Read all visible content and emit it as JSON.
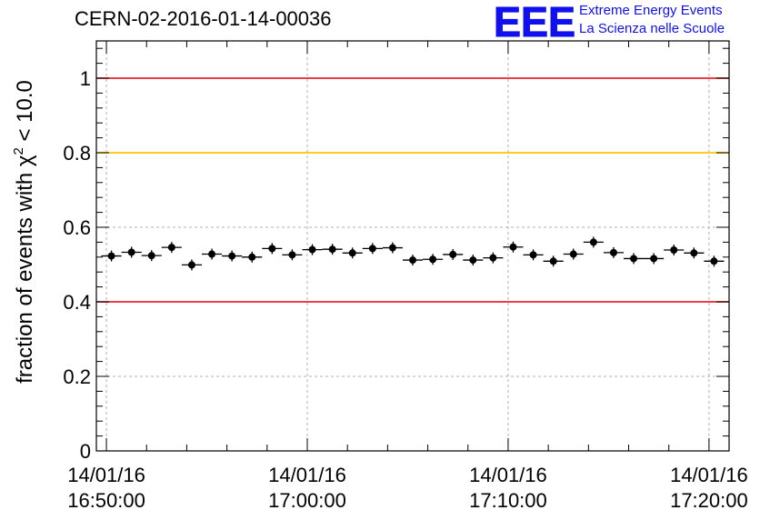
{
  "header": {
    "title": "CERN-02-2016-01-14-00036",
    "logo_text": "EEE",
    "logo_line1": "Extreme Energy Events",
    "logo_line2": "La Scienza nelle Scuole"
  },
  "colors": {
    "points": "#000000",
    "red_line": "#e8232b",
    "yellow_line": "#ffc400",
    "grid": "#b0b0b0",
    "logo": "#1010ee"
  },
  "chart_data": {
    "type": "scatter",
    "title": "CERN-02-2016-01-14-00036",
    "xlabel": "",
    "ylabel_prefix": "fraction of events with ",
    "ylabel_symbol": "χ",
    "ylabel_exponent": "2",
    "ylabel_suffix": " < 10.0",
    "x_range": [
      "14/01/16 16:49:30",
      "14/01/16 17:21:00"
    ],
    "ylim": [
      0,
      1.1
    ],
    "grid": true,
    "y_ticks": [
      {
        "value": 0,
        "label": "0"
      },
      {
        "value": 0.2,
        "label": "0.2"
      },
      {
        "value": 0.4,
        "label": "0.4"
      },
      {
        "value": 0.6,
        "label": "0.6"
      },
      {
        "value": 0.8,
        "label": "0.8"
      },
      {
        "value": 1.0,
        "label": "1"
      }
    ],
    "x_ticks": [
      {
        "time": "16:50:00",
        "date": "14/01/16",
        "label_time": "16:50:00"
      },
      {
        "time": "17:00:00",
        "date": "14/01/16",
        "label_time": "17:00:00"
      },
      {
        "time": "17:10:00",
        "date": "14/01/16",
        "label_time": "17:10:00"
      },
      {
        "time": "17:20:00",
        "date": "14/01/16",
        "label_time": "17:20:00"
      }
    ],
    "reference_lines": [
      {
        "value": 1.0,
        "color": "#e8232b"
      },
      {
        "value": 0.8,
        "color": "#ffc400"
      },
      {
        "value": 0.4,
        "color": "#e8232b"
      }
    ],
    "bin_width_minutes": 1,
    "series": [
      {
        "points": [
          {
            "x": "16:50:15",
            "y": 0.523
          },
          {
            "x": "16:51:15",
            "y": 0.533
          },
          {
            "x": "16:52:15",
            "y": 0.524
          },
          {
            "x": "16:53:15",
            "y": 0.546
          },
          {
            "x": "16:54:15",
            "y": 0.499
          },
          {
            "x": "16:55:15",
            "y": 0.528
          },
          {
            "x": "16:56:15",
            "y": 0.523
          },
          {
            "x": "16:57:15",
            "y": 0.52
          },
          {
            "x": "16:58:15",
            "y": 0.543
          },
          {
            "x": "16:59:15",
            "y": 0.526
          },
          {
            "x": "17:00:15",
            "y": 0.54
          },
          {
            "x": "17:01:15",
            "y": 0.541
          },
          {
            "x": "17:02:15",
            "y": 0.531
          },
          {
            "x": "17:03:15",
            "y": 0.543
          },
          {
            "x": "17:04:15",
            "y": 0.545
          },
          {
            "x": "17:05:15",
            "y": 0.512
          },
          {
            "x": "17:06:15",
            "y": 0.514
          },
          {
            "x": "17:07:15",
            "y": 0.527
          },
          {
            "x": "17:08:15",
            "y": 0.512
          },
          {
            "x": "17:09:15",
            "y": 0.518
          },
          {
            "x": "17:10:15",
            "y": 0.547
          },
          {
            "x": "17:11:15",
            "y": 0.526
          },
          {
            "x": "17:12:15",
            "y": 0.509
          },
          {
            "x": "17:13:15",
            "y": 0.528
          },
          {
            "x": "17:14:15",
            "y": 0.56
          },
          {
            "x": "17:15:15",
            "y": 0.532
          },
          {
            "x": "17:16:15",
            "y": 0.516
          },
          {
            "x": "17:17:15",
            "y": 0.516
          },
          {
            "x": "17:18:15",
            "y": 0.539
          },
          {
            "x": "17:19:15",
            "y": 0.531
          },
          {
            "x": "17:20:15",
            "y": 0.509
          }
        ]
      }
    ]
  }
}
